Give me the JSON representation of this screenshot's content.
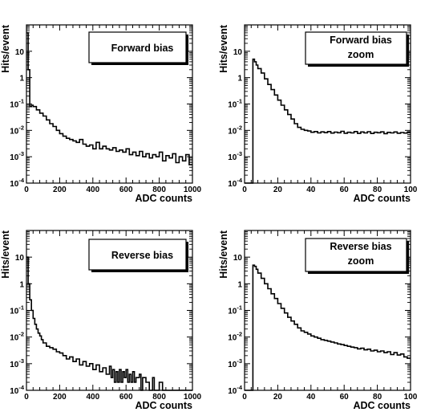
{
  "chart_data": [
    {
      "id": "forward",
      "type": "histogram",
      "legend": [
        "Forward bias"
      ],
      "xlabel": "ADC counts",
      "ylabel": "Hits/event",
      "xlim": [
        0,
        1000
      ],
      "ylim": [
        0.0001,
        100
      ],
      "yscale": "log",
      "xticks": [
        "0",
        "200",
        "400",
        "600",
        "800",
        "1000"
      ],
      "yticks": [
        {
          "base": "10",
          "exp": "-4"
        },
        {
          "base": "10",
          "exp": "-3"
        },
        {
          "base": "10",
          "exp": "-2"
        },
        {
          "base": "10",
          "exp": "-1"
        },
        {
          "base": "1",
          "exp": ""
        },
        {
          "base": "10",
          "exp": ""
        }
      ],
      "bins": [
        [
          0,
          50
        ],
        [
          10,
          2
        ],
        [
          20,
          0.08
        ],
        [
          30,
          0.09
        ],
        [
          40,
          0.08
        ],
        [
          60,
          0.06
        ],
        [
          80,
          0.045
        ],
        [
          100,
          0.035
        ],
        [
          120,
          0.025
        ],
        [
          140,
          0.018
        ],
        [
          160,
          0.014
        ],
        [
          180,
          0.01
        ],
        [
          200,
          0.0075
        ],
        [
          220,
          0.006
        ],
        [
          240,
          0.005
        ],
        [
          260,
          0.0045
        ],
        [
          280,
          0.004
        ],
        [
          300,
          0.0035
        ],
        [
          320,
          0.0045
        ],
        [
          340,
          0.003
        ],
        [
          360,
          0.0025
        ],
        [
          380,
          0.0028
        ],
        [
          400,
          0.002
        ],
        [
          420,
          0.0035
        ],
        [
          440,
          0.002
        ],
        [
          460,
          0.0025
        ],
        [
          480,
          0.002
        ],
        [
          500,
          0.0018
        ],
        [
          520,
          0.0022
        ],
        [
          540,
          0.0016
        ],
        [
          560,
          0.0018
        ],
        [
          580,
          0.0015
        ],
        [
          600,
          0.002
        ],
        [
          620,
          0.0012
        ],
        [
          640,
          0.0015
        ],
        [
          660,
          0.0011
        ],
        [
          680,
          0.0016
        ],
        [
          700,
          0.001
        ],
        [
          720,
          0.0013
        ],
        [
          740,
          0.0009
        ],
        [
          760,
          0.0012
        ],
        [
          780,
          0.001
        ],
        [
          800,
          0.0015
        ],
        [
          820,
          0.0007
        ],
        [
          840,
          0.0011
        ],
        [
          860,
          0.0009
        ],
        [
          880,
          0.0013
        ],
        [
          900,
          0.0006
        ],
        [
          920,
          0.001
        ],
        [
          940,
          0.0007
        ],
        [
          960,
          0.0012
        ],
        [
          980,
          0.0005
        ],
        [
          1000,
          0.0005
        ]
      ]
    },
    {
      "id": "forward-zoom",
      "type": "histogram",
      "legend": [
        "Forward bias",
        "zoom"
      ],
      "xlabel": "ADC counts",
      "ylabel": "Hits/event",
      "xlim": [
        0,
        100
      ],
      "ylim": [
        0.0001,
        100
      ],
      "yscale": "log",
      "xticks": [
        "0",
        "20",
        "40",
        "60",
        "80",
        "100"
      ],
      "yticks": [
        {
          "base": "10",
          "exp": "-4"
        },
        {
          "base": "10",
          "exp": "-3"
        },
        {
          "base": "10",
          "exp": "-2"
        },
        {
          "base": "10",
          "exp": "-1"
        },
        {
          "base": "1",
          "exp": ""
        },
        {
          "base": "10",
          "exp": ""
        }
      ],
      "bins": [
        [
          0,
          0.0001
        ],
        [
          5,
          5
        ],
        [
          6,
          4
        ],
        [
          7,
          3
        ],
        [
          8,
          2.2
        ],
        [
          10,
          1.5
        ],
        [
          12,
          0.9
        ],
        [
          14,
          0.55
        ],
        [
          16,
          0.35
        ],
        [
          18,
          0.22
        ],
        [
          20,
          0.14
        ],
        [
          22,
          0.09
        ],
        [
          24,
          0.06
        ],
        [
          26,
          0.04
        ],
        [
          28,
          0.027
        ],
        [
          30,
          0.018
        ],
        [
          32,
          0.013
        ],
        [
          34,
          0.011
        ],
        [
          36,
          0.01
        ],
        [
          38,
          0.0095
        ],
        [
          40,
          0.0085
        ],
        [
          42,
          0.009
        ],
        [
          44,
          0.008
        ],
        [
          46,
          0.0088
        ],
        [
          48,
          0.0082
        ],
        [
          50,
          0.009
        ],
        [
          52,
          0.0079
        ],
        [
          54,
          0.0086
        ],
        [
          56,
          0.0081
        ],
        [
          58,
          0.0092
        ],
        [
          60,
          0.0078
        ],
        [
          62,
          0.0085
        ],
        [
          64,
          0.008
        ],
        [
          66,
          0.009
        ],
        [
          68,
          0.0077
        ],
        [
          70,
          0.0087
        ],
        [
          72,
          0.008
        ],
        [
          74,
          0.0089
        ],
        [
          76,
          0.0076
        ],
        [
          78,
          0.0085
        ],
        [
          80,
          0.0081
        ],
        [
          82,
          0.0088
        ],
        [
          84,
          0.0075
        ],
        [
          86,
          0.0084
        ],
        [
          88,
          0.008
        ],
        [
          90,
          0.0087
        ],
        [
          92,
          0.0078
        ],
        [
          94,
          0.0083
        ],
        [
          96,
          0.0079
        ],
        [
          98,
          0.0086
        ],
        [
          100,
          0.0086
        ]
      ]
    },
    {
      "id": "reverse",
      "type": "histogram",
      "legend": [
        "Reverse bias"
      ],
      "xlabel": "ADC counts",
      "ylabel": "Hits/event",
      "xlim": [
        0,
        1000
      ],
      "ylim": [
        0.0001,
        100
      ],
      "yscale": "log",
      "xticks": [
        "0",
        "200",
        "400",
        "600",
        "800",
        "1000"
      ],
      "yticks": [
        {
          "base": "10",
          "exp": "-4"
        },
        {
          "base": "10",
          "exp": "-3"
        },
        {
          "base": "10",
          "exp": "-2"
        },
        {
          "base": "10",
          "exp": "-1"
        },
        {
          "base": "1",
          "exp": ""
        },
        {
          "base": "10",
          "exp": ""
        }
      ],
      "bins": [
        [
          0,
          10
        ],
        [
          10,
          1
        ],
        [
          20,
          0.25
        ],
        [
          30,
          0.1
        ],
        [
          40,
          0.05
        ],
        [
          50,
          0.03
        ],
        [
          60,
          0.02
        ],
        [
          70,
          0.014
        ],
        [
          80,
          0.011
        ],
        [
          90,
          0.008
        ],
        [
          100,
          0.006
        ],
        [
          120,
          0.0045
        ],
        [
          140,
          0.004
        ],
        [
          160,
          0.0035
        ],
        [
          180,
          0.0028
        ],
        [
          200,
          0.0025
        ],
        [
          220,
          0.002
        ],
        [
          240,
          0.0015
        ],
        [
          260,
          0.0018
        ],
        [
          280,
          0.0012
        ],
        [
          300,
          0.0015
        ],
        [
          320,
          0.0009
        ],
        [
          340,
          0.0012
        ],
        [
          360,
          0.0008
        ],
        [
          380,
          0.001
        ],
        [
          400,
          0.0006
        ],
        [
          420,
          0.0009
        ],
        [
          440,
          0.0005
        ],
        [
          460,
          0.0007
        ],
        [
          480,
          0.0004
        ],
        [
          500,
          0.0008
        ],
        [
          510,
          0.0003
        ],
        [
          520,
          0.0006
        ],
        [
          530,
          0.0002
        ],
        [
          540,
          0.0005
        ],
        [
          550,
          0.0002
        ],
        [
          560,
          0.0006
        ],
        [
          570,
          0.0002
        ],
        [
          580,
          0.0005
        ],
        [
          590,
          0.0003
        ],
        [
          600,
          0.0006
        ],
        [
          610,
          0.0002
        ],
        [
          620,
          0.0004
        ],
        [
          630,
          0.0002
        ],
        [
          640,
          0.0005
        ],
        [
          650,
          0.0002
        ],
        [
          660,
          0.0003
        ],
        [
          680,
          0.0004
        ],
        [
          690,
          0.0001
        ],
        [
          700,
          0.0003
        ],
        [
          720,
          0.0002
        ],
        [
          740,
          0.0001
        ],
        [
          760,
          0.0003
        ],
        [
          770,
          0.0001
        ],
        [
          800,
          0.0002
        ],
        [
          820,
          0.0001
        ],
        [
          1000,
          0.0001
        ]
      ]
    },
    {
      "id": "reverse-zoom",
      "type": "histogram",
      "legend": [
        "Reverse bias",
        "zoom"
      ],
      "xlabel": "ADC counts",
      "ylabel": "Hits/event",
      "xlim": [
        0,
        100
      ],
      "ylim": [
        0.0001,
        100
      ],
      "yscale": "log",
      "xticks": [
        "0",
        "20",
        "40",
        "60",
        "80",
        "100"
      ],
      "yticks": [
        {
          "base": "10",
          "exp": "-4"
        },
        {
          "base": "10",
          "exp": "-3"
        },
        {
          "base": "10",
          "exp": "-2"
        },
        {
          "base": "10",
          "exp": "-1"
        },
        {
          "base": "1",
          "exp": ""
        },
        {
          "base": "10",
          "exp": ""
        }
      ],
      "bins": [
        [
          0,
          0.0001
        ],
        [
          5,
          5
        ],
        [
          6,
          4.5
        ],
        [
          7,
          3.5
        ],
        [
          8,
          2.5
        ],
        [
          10,
          1.6
        ],
        [
          12,
          1.0
        ],
        [
          14,
          0.65
        ],
        [
          16,
          0.42
        ],
        [
          18,
          0.28
        ],
        [
          20,
          0.18
        ],
        [
          22,
          0.12
        ],
        [
          24,
          0.08
        ],
        [
          26,
          0.055
        ],
        [
          28,
          0.04
        ],
        [
          30,
          0.03
        ],
        [
          32,
          0.022
        ],
        [
          34,
          0.017
        ],
        [
          36,
          0.015
        ],
        [
          38,
          0.013
        ],
        [
          40,
          0.011
        ],
        [
          42,
          0.01
        ],
        [
          44,
          0.009
        ],
        [
          46,
          0.008
        ],
        [
          48,
          0.0075
        ],
        [
          50,
          0.007
        ],
        [
          52,
          0.0065
        ],
        [
          54,
          0.006
        ],
        [
          56,
          0.0055
        ],
        [
          58,
          0.0052
        ],
        [
          60,
          0.0048
        ],
        [
          62,
          0.0045
        ],
        [
          64,
          0.0042
        ],
        [
          66,
          0.004
        ],
        [
          68,
          0.0036
        ],
        [
          70,
          0.0038
        ],
        [
          72,
          0.0033
        ],
        [
          74,
          0.0035
        ],
        [
          76,
          0.003
        ],
        [
          78,
          0.0032
        ],
        [
          80,
          0.0028
        ],
        [
          82,
          0.003
        ],
        [
          84,
          0.0026
        ],
        [
          86,
          0.0028
        ],
        [
          88,
          0.0022
        ],
        [
          90,
          0.0026
        ],
        [
          92,
          0.0021
        ],
        [
          94,
          0.0023
        ],
        [
          96,
          0.0018
        ],
        [
          98,
          0.0016
        ],
        [
          100,
          0.0016
        ]
      ]
    }
  ]
}
